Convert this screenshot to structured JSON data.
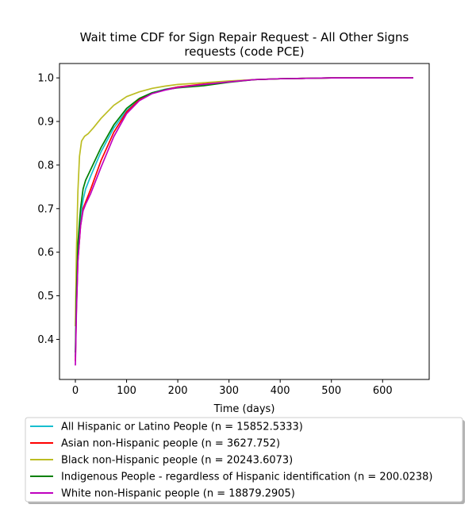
{
  "chart_data": {
    "type": "line",
    "title_line1": "Wait time CDF for Sign Repair Request - All Other Signs",
    "title_line2": "requests (code PCE)",
    "xlabel": "Time (days)",
    "ylabel": "",
    "xlim": [
      -31,
      691
    ],
    "ylim": [
      0.308,
      1.033
    ],
    "xticks": [
      0,
      100,
      200,
      300,
      400,
      500,
      600
    ],
    "yticks": [
      0.4,
      0.5,
      0.6,
      0.7,
      0.8,
      0.9,
      1.0
    ],
    "xtick_labels": [
      "0",
      "100",
      "200",
      "300",
      "400",
      "500",
      "600"
    ],
    "ytick_labels": [
      "0.4",
      "0.5",
      "0.6",
      "0.7",
      "0.8",
      "0.9",
      "1.0"
    ],
    "grid": false,
    "legend_position": "below plot",
    "series": [
      {
        "name": "All Hispanic or Latino People (n = 15852.5333)",
        "color": "#17becf",
        "x": [
          0,
          2,
          5,
          10,
          15,
          20,
          30,
          50,
          75,
          100,
          125,
          150,
          175,
          200,
          250,
          300,
          350,
          400,
          450,
          500,
          550,
          600,
          660
        ],
        "y": [
          0.36,
          0.48,
          0.6,
          0.68,
          0.72,
          0.745,
          0.775,
          0.83,
          0.885,
          0.925,
          0.952,
          0.966,
          0.974,
          0.979,
          0.985,
          0.991,
          0.996,
          0.998,
          0.999,
          1.0,
          1.0,
          1.0,
          1.0
        ]
      },
      {
        "name": "Asian non-Hispanic people (n = 3627.752)",
        "color": "#ff0000",
        "x": [
          0,
          2,
          5,
          10,
          15,
          20,
          30,
          50,
          75,
          100,
          125,
          150,
          175,
          200,
          250,
          300,
          350,
          400,
          450,
          500,
          550,
          600,
          660
        ],
        "y": [
          0.35,
          0.47,
          0.58,
          0.66,
          0.7,
          0.715,
          0.745,
          0.81,
          0.875,
          0.922,
          0.95,
          0.965,
          0.973,
          0.979,
          0.986,
          0.992,
          0.996,
          0.998,
          0.999,
          1.0,
          1.0,
          1.0,
          1.0
        ]
      },
      {
        "name": "Black non-Hispanic people (n = 20243.6073)",
        "color": "#bcbd22",
        "x": [
          0,
          2,
          5,
          8,
          12,
          18,
          25,
          35,
          50,
          75,
          100,
          125,
          150,
          175,
          200,
          250,
          300,
          350,
          400,
          450,
          500,
          550,
          600,
          660
        ],
        "y": [
          0.43,
          0.6,
          0.74,
          0.82,
          0.855,
          0.866,
          0.872,
          0.885,
          0.907,
          0.937,
          0.957,
          0.968,
          0.976,
          0.981,
          0.985,
          0.989,
          0.993,
          0.996,
          0.998,
          0.999,
          1.0,
          1.0,
          1.0,
          1.0
        ]
      },
      {
        "name": "Indigenous People - regardless of Hispanic identification (n = 200.0238)",
        "color": "#008000",
        "x": [
          0,
          2,
          5,
          10,
          15,
          20,
          30,
          50,
          75,
          100,
          125,
          150,
          175,
          200,
          250,
          300,
          350,
          400,
          450,
          500,
          550,
          600,
          660
        ],
        "y": [
          0.37,
          0.5,
          0.62,
          0.7,
          0.745,
          0.765,
          0.79,
          0.84,
          0.892,
          0.93,
          0.953,
          0.966,
          0.973,
          0.977,
          0.982,
          0.99,
          0.996,
          0.998,
          0.999,
          1.0,
          1.0,
          1.0,
          1.0
        ]
      },
      {
        "name": "White non-Hispanic people (n = 18879.2905)",
        "color": "#bf00bf",
        "x": [
          0,
          2,
          5,
          10,
          15,
          20,
          30,
          50,
          75,
          100,
          125,
          150,
          175,
          200,
          250,
          300,
          350,
          400,
          450,
          500,
          550,
          600,
          660
        ],
        "y": [
          0.34,
          0.46,
          0.58,
          0.66,
          0.695,
          0.71,
          0.735,
          0.795,
          0.865,
          0.918,
          0.948,
          0.964,
          0.972,
          0.978,
          0.985,
          0.991,
          0.996,
          0.998,
          0.999,
          1.0,
          1.0,
          1.0,
          1.0
        ]
      }
    ]
  }
}
